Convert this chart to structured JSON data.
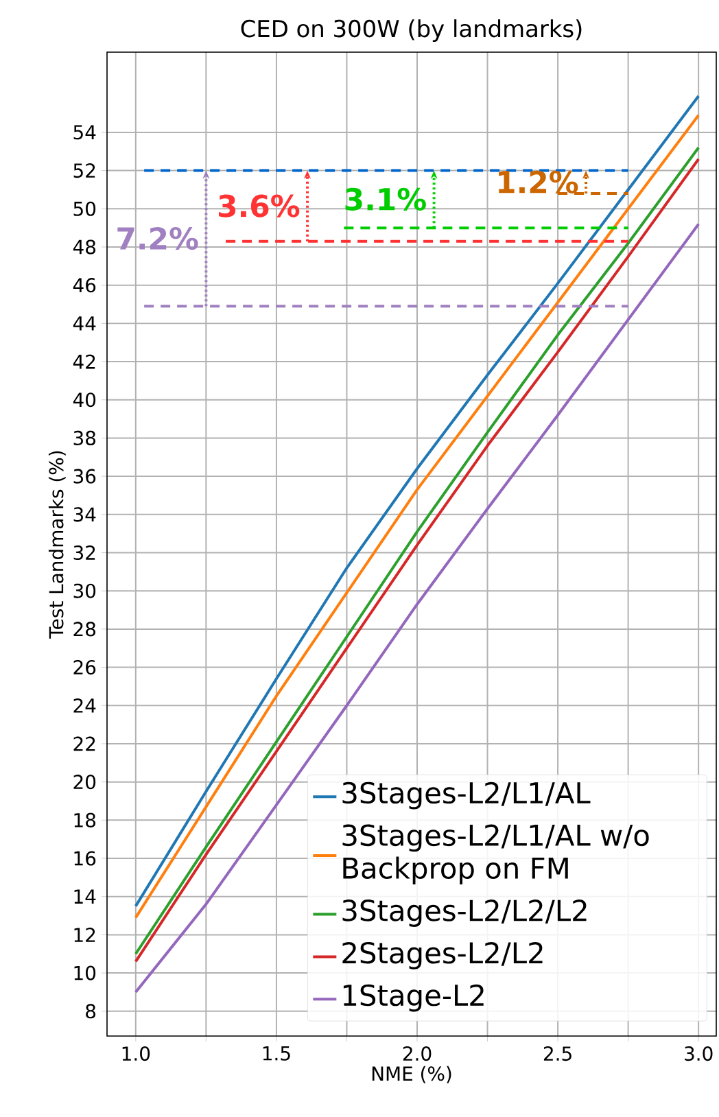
{
  "chart_data": {
    "type": "line",
    "title": "CED on 300W (by landmarks)",
    "xlabel": "NME (%)",
    "ylabel": "Test Landmarks (%)",
    "xlim": [
      0.898,
      3.063
    ],
    "ylim": [
      6.7,
      58.2
    ],
    "xticks": [
      {
        "value": 1,
        "label": "1.0"
      },
      {
        "value": 1.25,
        "label": null
      },
      1.5,
      {
        "value": 1.75,
        "label": null
      },
      {
        "value": 2,
        "label": "2.0"
      },
      {
        "value": 2.25,
        "label": null
      },
      2.5,
      {
        "value": 2.75,
        "label": null
      },
      {
        "value": 3,
        "label": "3.0"
      }
    ],
    "yticks": [
      8,
      10,
      12,
      14,
      16,
      18,
      20,
      22,
      24,
      26,
      28,
      30,
      32,
      34,
      36,
      38,
      40,
      42,
      44,
      46,
      48,
      50,
      52,
      54
    ],
    "grid": true,
    "legend": "bottom right",
    "line_style": "solid",
    "marker": "none",
    "series": [
      {
        "name": "3Stages-L2/L1/AL",
        "color": "#1f77b4",
        "x": [
          1.0,
          1.25,
          1.5,
          1.75,
          2.0,
          2.25,
          2.5,
          2.75,
          3.0
        ],
        "values": [
          13.5,
          19.5,
          25.4,
          31.2,
          36.4,
          41.3,
          46.1,
          51.0,
          55.9
        ]
      },
      {
        "name": "3Stages-L2/L1/AL w/o Backprop on FM",
        "color": "#ff7f0e",
        "x": [
          1.0,
          1.25,
          1.5,
          1.75,
          2.0,
          2.25,
          2.5,
          2.75,
          3.0
        ],
        "values": [
          12.9,
          18.7,
          24.5,
          29.9,
          35.3,
          40.2,
          45.1,
          50.0,
          54.9
        ]
      },
      {
        "name": "3Stages-L2/L2/L2",
        "color": "#2ca02c",
        "x": [
          1.0,
          1.25,
          1.5,
          1.75,
          2.0,
          2.25,
          2.5,
          2.75,
          3.0
        ],
        "values": [
          11.0,
          16.6,
          22.1,
          27.6,
          33.1,
          38.3,
          43.4,
          48.2,
          53.2
        ]
      },
      {
        "name": "2Stages-L2/L2",
        "color": "#d62728",
        "x": [
          1.0,
          1.25,
          1.5,
          1.75,
          2.0,
          2.25,
          2.5,
          2.75,
          3.0
        ],
        "values": [
          10.6,
          16.2,
          21.6,
          27.0,
          32.4,
          37.6,
          42.5,
          47.5,
          52.6
        ]
      },
      {
        "name": "1Stage-L2",
        "color": "#9467bd",
        "x": [
          1.0,
          1.25,
          1.5,
          1.75,
          2.0,
          2.25,
          2.5,
          2.75,
          3.0
        ],
        "values": [
          9.0,
          13.6,
          18.8,
          24.0,
          29.3,
          34.3,
          39.2,
          44.2,
          49.2
        ]
      },
      {
        "type": "line",
        "color": "#0066cc",
        "line_style": "dashed",
        "x": [
          1.03,
          2.75
        ],
        "values": [
          52,
          52
        ]
      },
      {
        "type": "line",
        "color": "#a080c0",
        "line_style": "dashed",
        "x": [
          1.03,
          2.75
        ],
        "values": [
          44.9,
          44.9
        ]
      },
      {
        "type": "line",
        "color": "#ff3333",
        "line_style": "dashed",
        "x": [
          1.32,
          2.75
        ],
        "values": [
          48.3,
          48.3
        ]
      },
      {
        "type": "line",
        "color": "#00cc00",
        "line_style": "dashed",
        "x": [
          1.74,
          2.75
        ],
        "values": [
          49.0,
          49.0
        ]
      },
      {
        "type": "line",
        "color": "#cc6600",
        "line_style": "dashed",
        "x": [
          2.5,
          2.75
        ],
        "values": [
          50.8,
          50.8
        ]
      }
    ],
    "annotations": [
      {
        "text": "7.2%",
        "x": 1.25,
        "y": 52
      },
      {
        "text": "3.6%",
        "x": 1.61,
        "y": 52
      },
      {
        "text": "3.1%",
        "x": 2.06,
        "y": 52
      },
      {
        "text": "1.2%",
        "x": 2.6,
        "y": 52
      }
    ]
  }
}
